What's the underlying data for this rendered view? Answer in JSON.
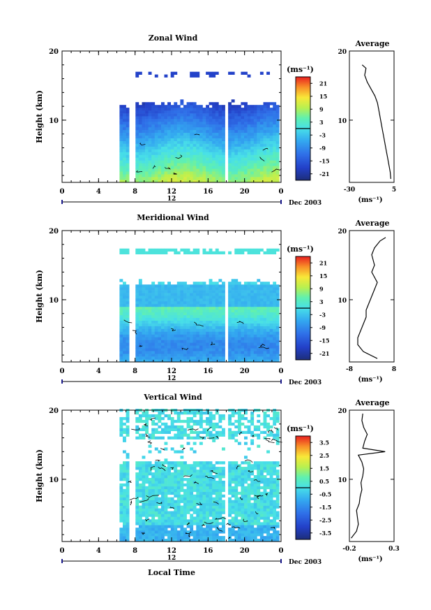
{
  "figure": {
    "x_axis_label": "Local Time",
    "date_label": "Dec 2003",
    "date_day": "12"
  },
  "chart_data": [
    {
      "type": "heatmap",
      "title": "Zonal Wind",
      "ylabel": "Height (km)",
      "xlabel": "Local Time",
      "x_ticks": [
        "0",
        "4",
        "8",
        "12",
        "16",
        "20",
        "0"
      ],
      "y_ticks": [
        "10",
        "20"
      ],
      "xlim": [
        0,
        24
      ],
      "ylim": [
        1,
        20
      ],
      "data_time_range": [
        6.3,
        23.7
      ],
      "colorbar": {
        "unit": "(ms⁻¹)",
        "ticks": [
          "21",
          "15",
          "9",
          "3",
          "-3",
          "-9",
          "-15",
          "-21"
        ],
        "range": [
          -24,
          24
        ],
        "zero_contour": true
      },
      "profile": {
        "title": "Average",
        "x_ticks": [
          "-30",
          "5"
        ],
        "xlim": [
          -30,
          5
        ],
        "unit": "(ms⁻¹)",
        "points": [
          [
            2.5,
            1.5
          ],
          [
            2,
            2.5
          ],
          [
            1,
            3.5
          ],
          [
            0,
            4.5
          ],
          [
            -1,
            5.5
          ],
          [
            -2,
            6.5
          ],
          [
            -3,
            7.5
          ],
          [
            -4,
            8.5
          ],
          [
            -5,
            9.5
          ],
          [
            -6,
            10.5
          ],
          [
            -7,
            11.5
          ],
          [
            -8,
            12.5
          ],
          [
            -10,
            13.5
          ],
          [
            -13,
            14.5
          ],
          [
            -16,
            15.5
          ],
          [
            -18,
            16.5
          ],
          [
            -17,
            17.5
          ],
          [
            -20,
            18
          ]
        ]
      }
    },
    {
      "type": "heatmap",
      "title": "Meridional Wind",
      "ylabel": "Height (km)",
      "xlabel": "Local Time",
      "x_ticks": [
        "0",
        "4",
        "8",
        "12",
        "16",
        "20",
        "0"
      ],
      "y_ticks": [
        "10",
        "20"
      ],
      "xlim": [
        0,
        24
      ],
      "ylim": [
        1,
        20
      ],
      "data_time_range": [
        6.3,
        23.7
      ],
      "colorbar": {
        "unit": "(ms⁻¹)",
        "ticks": [
          "21",
          "15",
          "9",
          "3",
          "-3",
          "-9",
          "-15",
          "-21"
        ],
        "range": [
          -24,
          24
        ],
        "zero_contour": true
      },
      "profile": {
        "title": "Average",
        "x_ticks": [
          "-8",
          "8"
        ],
        "xlim": [
          -8,
          8
        ],
        "unit": "(ms⁻¹)",
        "points": [
          [
            2,
            1.5
          ],
          [
            -3,
            2.5
          ],
          [
            -5,
            3.5
          ],
          [
            -5,
            4.5
          ],
          [
            -4,
            5.5
          ],
          [
            -3,
            6.5
          ],
          [
            -2,
            7.5
          ],
          [
            -2,
            8.5
          ],
          [
            -1,
            9.5
          ],
          [
            0,
            10.5
          ],
          [
            1,
            11.5
          ],
          [
            2,
            12.5
          ],
          [
            0,
            14
          ],
          [
            1,
            15
          ],
          [
            0,
            16.5
          ],
          [
            1,
            17.5
          ],
          [
            3,
            18.5
          ],
          [
            5,
            19
          ]
        ]
      }
    },
    {
      "type": "heatmap",
      "title": "Vertical Wind",
      "ylabel": "Height (km)",
      "xlabel": "Local Time",
      "x_ticks": [
        "0",
        "4",
        "8",
        "12",
        "16",
        "20",
        "0"
      ],
      "y_ticks": [
        "10",
        "20"
      ],
      "xlim": [
        0,
        24
      ],
      "ylim": [
        1,
        20
      ],
      "data_time_range": [
        6.3,
        23.7
      ],
      "colorbar": {
        "unit": "(ms⁻¹)",
        "ticks": [
          "3.5",
          "2.5",
          "1.5",
          "0.5",
          "-0.5",
          "-1.5",
          "-2.5",
          "-3.5"
        ],
        "range": [
          -4,
          4
        ],
        "zero_contour": true
      },
      "profile": {
        "title": "Average",
        "x_ticks": [
          "-0.2",
          "0.3"
        ],
        "xlim": [
          -0.2,
          0.3
        ],
        "unit": "(ms⁻¹)",
        "points": [
          [
            -0.18,
            1.5
          ],
          [
            -0.12,
            2.5
          ],
          [
            -0.1,
            3.5
          ],
          [
            -0.11,
            4.5
          ],
          [
            -0.12,
            5.5
          ],
          [
            -0.09,
            6.5
          ],
          [
            -0.08,
            7.5
          ],
          [
            -0.06,
            8.5
          ],
          [
            -0.07,
            9.5
          ],
          [
            -0.05,
            10.5
          ],
          [
            -0.04,
            11.5
          ],
          [
            -0.06,
            12.5
          ],
          [
            -0.1,
            13.5
          ],
          [
            0.2,
            14
          ],
          [
            -0.05,
            14.5
          ],
          [
            -0.03,
            15.5
          ],
          [
            0.0,
            16.5
          ],
          [
            -0.04,
            17.5
          ],
          [
            -0.06,
            18.5
          ],
          [
            -0.05,
            19.5
          ]
        ]
      }
    }
  ]
}
